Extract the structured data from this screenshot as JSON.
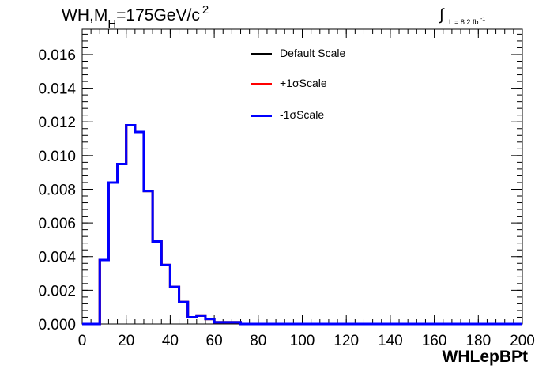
{
  "title": {
    "main": "WH,M",
    "sub": "H",
    "mid": "=175GeV/c",
    "sup": "2"
  },
  "luminosity": {
    "symbol": "∫",
    "label": "L = 8.2 fb",
    "sup": "-1"
  },
  "chart_data": {
    "type": "histogram",
    "xlabel": "WHLepBPt",
    "ylabel": "",
    "xlim": [
      0,
      200
    ],
    "ylim": [
      0,
      0.0175
    ],
    "bin_width": 4,
    "x_ticks": [
      0,
      20,
      40,
      60,
      80,
      100,
      120,
      140,
      160,
      180,
      200
    ],
    "y_ticks": [
      "0.000",
      "0.002",
      "0.004",
      "0.006",
      "0.008",
      "0.010",
      "0.012",
      "0.014",
      "0.016"
    ],
    "y_tick_values": [
      0,
      0.002,
      0.004,
      0.006,
      0.008,
      0.01,
      0.012,
      0.014,
      0.016
    ],
    "grid": false,
    "legend_position": "top-center",
    "series": [
      {
        "name": "Default Scale",
        "color": "#000000"
      },
      {
        "name": "+1σScale",
        "color": "#ff0000"
      },
      {
        "name": "-1σScale",
        "color": "#0000ff"
      }
    ],
    "bins_x": [
      0,
      4,
      8,
      12,
      16,
      20,
      24,
      28,
      32,
      36,
      40,
      44,
      48,
      52,
      56,
      60,
      64,
      68,
      72,
      76,
      80
    ],
    "values": [
      0,
      0,
      0.0038,
      0.0084,
      0.0095,
      0.0118,
      0.0114,
      0.0079,
      0.0049,
      0.0035,
      0.0022,
      0.0013,
      0.0004,
      0.0005,
      0.0003,
      0.0001,
      0.0001,
      0.0001,
      0,
      0,
      0
    ]
  }
}
